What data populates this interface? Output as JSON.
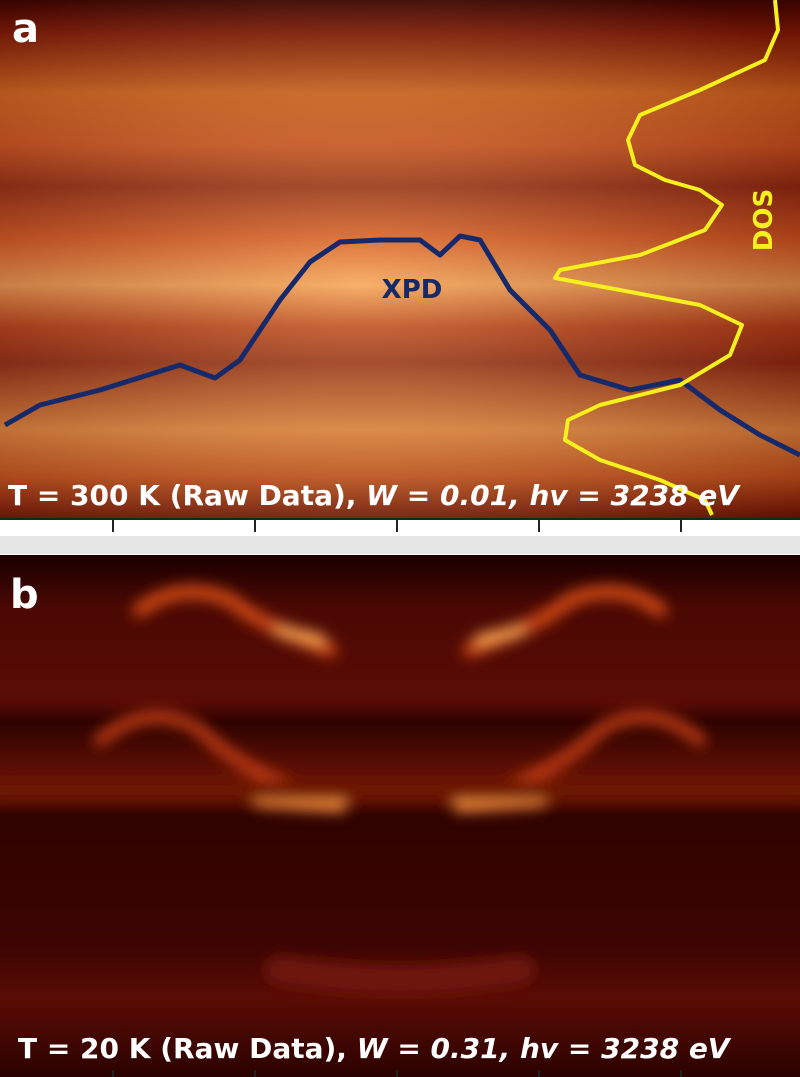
{
  "panels": [
    {
      "label": "a",
      "caption": {
        "plain": "T = 300 K (Raw Data), ",
        "italic": "W = 0.01, hv = 3238 eV"
      },
      "curves": [
        "XPD",
        "DOS"
      ]
    },
    {
      "label": "b",
      "caption": {
        "plain": "T = 20 K (Raw Data), ",
        "italic": "W = 0.31, hv = 3238 eV"
      }
    }
  ]
}
